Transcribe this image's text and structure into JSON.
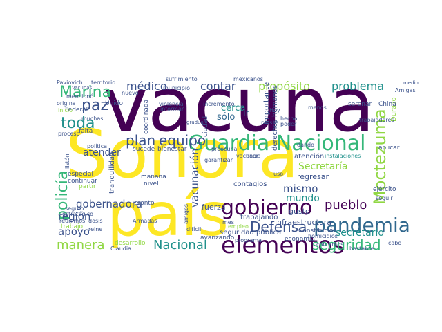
{
  "palette": {
    "dark_purple": "#440154",
    "indigo": "#3b528b",
    "blue": "#31688e",
    "teal": "#21918c",
    "green": "#35b779",
    "light_green": "#90d743",
    "yellow": "#fde725"
  },
  "words": [
    {
      "text": "vacuna",
      "color": "#440154"
    },
    {
      "text": "Sonora",
      "color": "#fde725"
    },
    {
      "text": "país",
      "color": "#fde725"
    },
    {
      "text": "Guardia Nacional",
      "color": "#35b779"
    },
    {
      "text": "elementos",
      "color": "#440154"
    },
    {
      "text": "gobierno",
      "color": "#440154"
    },
    {
      "text": "pandemia",
      "color": "#31688e"
    },
    {
      "text": "Moctezuma",
      "color": "#90d743"
    },
    {
      "text": "policía",
      "color": "#35b779"
    },
    {
      "text": "Marina",
      "color": "#35b779"
    },
    {
      "text": "toda",
      "color": "#21918c"
    },
    {
      "text": "paz",
      "color": "#3b528b"
    },
    {
      "text": "plan",
      "color": "#3b528b"
    },
    {
      "text": "equipo",
      "color": "#3b528b"
    },
    {
      "text": "Defensa",
      "color": "#3b528b"
    },
    {
      "text": "seguridad",
      "color": "#35b779"
    },
    {
      "text": "Nacional",
      "color": "#21918c"
    },
    {
      "text": "manera",
      "color": "#90d743"
    },
    {
      "text": "pueblo",
      "color": "#440154"
    },
    {
      "text": "propósito",
      "color": "#90d743"
    },
    {
      "text": "problema",
      "color": "#21918c"
    },
    {
      "text": "médico",
      "color": "#3b528b"
    },
    {
      "text": "contar",
      "color": "#3b528b"
    },
    {
      "text": "gobernadora",
      "color": "#3b528b"
    },
    {
      "text": "vacunación",
      "color": "#3b528b"
    },
    {
      "text": "mismo",
      "color": "#3b528b"
    },
    {
      "text": "mundo",
      "color": "#21918c"
    },
    {
      "text": "región",
      "color": "#3b528b"
    },
    {
      "text": "apoyo",
      "color": "#3b528b"
    },
    {
      "text": "atender",
      "color": "#3b528b"
    },
    {
      "text": "Secretaría",
      "color": "#90d743"
    },
    {
      "text": "secretario",
      "color": "#21918c"
    },
    {
      "text": "seguridad pública",
      "color": "#3b528b"
    },
    {
      "text": "cerca",
      "color": "#21918c"
    },
    {
      "text": "sólo",
      "color": "#31688e"
    },
    {
      "text": "ir",
      "color": "#31688e"
    },
    {
      "text": "importante",
      "color": "#3b528b"
    },
    {
      "text": "fuerza",
      "color": "#3b528b"
    },
    {
      "text": "trabajando",
      "color": "#3b528b"
    },
    {
      "text": "infraestructura",
      "color": "#3b528b"
    },
    {
      "text": "contagios",
      "color": "#3b528b"
    },
    {
      "text": "derechos humanos",
      "color": "#3b528b"
    },
    {
      "text": "atención",
      "color": "#3b528b"
    },
    {
      "text": "instalaciones",
      "color": "#21918c"
    },
    {
      "text": "gusto",
      "color": "#3b528b"
    },
    {
      "text": "regresar",
      "color": "#3b528b"
    },
    {
      "text": "economía",
      "color": "#3b528b"
    },
    {
      "text": "homicidios",
      "color": "#3b528b"
    },
    {
      "text": "Constitución",
      "color": "#3b528b"
    },
    {
      "text": "ejército",
      "color": "#3b528b"
    },
    {
      "text": "aplicar",
      "color": "#3b528b"
    },
    {
      "text": "seguir",
      "color": "#3b528b"
    },
    {
      "text": "continuar",
      "color": "#3b528b"
    },
    {
      "text": "tranquilidad",
      "color": "#3b528b"
    },
    {
      "text": "mañana",
      "color": "#3b528b"
    },
    {
      "text": "nivel",
      "color": "#3b528b"
    },
    {
      "text": "pronto",
      "color": "#3b528b"
    },
    {
      "text": "avanzando",
      "color": "#3b528b"
    },
    {
      "text": "bienestar",
      "color": "#3b528b"
    },
    {
      "text": "sucede",
      "color": "#3b528b"
    },
    {
      "text": "especial",
      "color": "#3b528b"
    },
    {
      "text": "partir",
      "color": "#90d743"
    },
    {
      "text": "Federal",
      "color": "#3b528b"
    },
    {
      "text": "Unido",
      "color": "#3b528b"
    },
    {
      "text": "falta",
      "color": "#3b528b"
    },
    {
      "text": "proceso",
      "color": "#3b528b"
    },
    {
      "text": "muchas",
      "color": "#3b528b"
    },
    {
      "text": "origina",
      "color": "#3b528b"
    },
    {
      "text": "mencionó",
      "color": "#3b528b"
    },
    {
      "text": "Paviovich",
      "color": "#3b528b"
    },
    {
      "text": "territorio",
      "color": "#3b528b"
    },
    {
      "text": "sufrimiento",
      "color": "#3b528b"
    },
    {
      "text": "mexicanos",
      "color": "#3b528b"
    },
    {
      "text": "municipio",
      "color": "#3b528b"
    },
    {
      "text": "violencia",
      "color": "#3b528b"
    },
    {
      "text": "informar",
      "color": "#3b528b"
    },
    {
      "text": "incremento",
      "color": "#3b528b"
    },
    {
      "text": "serenar",
      "color": "#3b528b"
    },
    {
      "text": "menos",
      "color": "#3b528b"
    },
    {
      "text": "China",
      "color": "#3b528b"
    },
    {
      "text": "trabajadores",
      "color": "#3b528b"
    },
    {
      "text": "Hoy",
      "color": "#3b528b"
    },
    {
      "text": "hecho",
      "color": "#3b528b"
    },
    {
      "text": "países",
      "color": "#3b528b"
    },
    {
      "text": "poder",
      "color": "#3b528b"
    },
    {
      "text": "preocupa",
      "color": "#3b528b"
    },
    {
      "text": "vacunar",
      "color": "#3b528b"
    },
    {
      "text": "garantizar",
      "color": "#3b528b"
    },
    {
      "text": "hacia",
      "color": "#3b528b"
    },
    {
      "text": "uso",
      "color": "#3b528b"
    },
    {
      "text": "dando",
      "color": "#3b528b"
    },
    {
      "text": "estratégico",
      "color": "#3b528b"
    },
    {
      "text": "seguro",
      "color": "#3b528b"
    },
    {
      "text": "trabajo",
      "color": "#90d743"
    },
    {
      "text": "reine",
      "color": "#3b528b"
    },
    {
      "text": "desarrollo",
      "color": "#90d743"
    },
    {
      "text": "Claudia",
      "color": "#3b528b"
    },
    {
      "text": "Armadas",
      "color": "#3b528b"
    },
    {
      "text": "dosis",
      "color": "#3b528b"
    },
    {
      "text": "mes",
      "color": "#3b528b"
    },
    {
      "text": "empleo",
      "color": "#90d743"
    },
    {
      "text": "programa",
      "color": "#3b528b"
    },
    {
      "text": "contamos",
      "color": "#3b528b"
    },
    {
      "text": "bastante",
      "color": "#3b528b"
    },
    {
      "text": "cabo",
      "color": "#3b528b"
    },
    {
      "text": "amigos",
      "color": "#3b528b"
    },
    {
      "text": "difícil",
      "color": "#3b528b"
    },
    {
      "text": "reunimos",
      "color": "#3b528b"
    },
    {
      "text": "listón",
      "color": "#3b528b"
    },
    {
      "text": "ciudad",
      "color": "#3b528b"
    },
    {
      "text": "coordinada",
      "color": "#3b528b"
    },
    {
      "text": "política",
      "color": "#3b528b"
    },
    {
      "text": "gradual",
      "color": "#3b528b"
    },
    {
      "text": "Amigas",
      "color": "#3b528b"
    },
    {
      "text": "nuevo",
      "color": "#3b528b"
    },
    {
      "text": "medio",
      "color": "#3b528b"
    },
    {
      "text": "inicio",
      "color": "#90d743"
    },
    {
      "text": "Durazo",
      "color": "#90d743"
    },
    {
      "text": "básica",
      "color": "#3b528b"
    },
    {
      "text": "Vacunas",
      "color": "#3b528b"
    },
    {
      "text": "Leyes",
      "color": "#3b528b"
    },
    {
      "text": "Guardia",
      "color": "#90d743"
    },
    {
      "text": "celebro",
      "color": "#3b528b"
    }
  ]
}
